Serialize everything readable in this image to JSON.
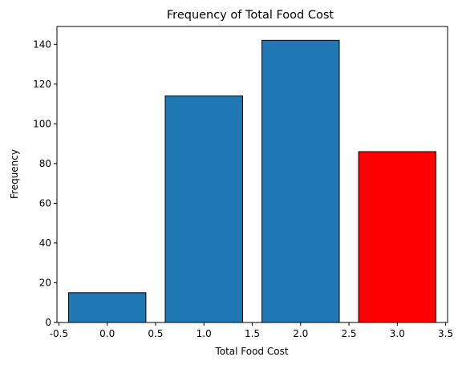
{
  "chart_data": {
    "type": "bar",
    "title": "Frequency of Total Food Cost",
    "xlabel": "Total Food Cost",
    "ylabel": "Frequency",
    "x": [
      0,
      1,
      2,
      3
    ],
    "values": [
      15,
      114,
      142,
      86
    ],
    "bar_colors": [
      "#1f77b4",
      "#1f77b4",
      "#1f77b4",
      "#ff0000"
    ],
    "edge_color": "#000000",
    "bar_width": 0.8,
    "xlim": [
      -0.52,
      3.52
    ],
    "ylim": [
      0,
      149
    ],
    "xticks": [
      "-0.5",
      "0.0",
      "0.5",
      "1.0",
      "1.5",
      "2.0",
      "2.5",
      "3.0",
      "3.5"
    ],
    "xtick_values": [
      -0.5,
      0.0,
      0.5,
      1.0,
      1.5,
      2.0,
      2.5,
      3.0,
      3.5
    ],
    "yticks": [
      "0",
      "20",
      "40",
      "60",
      "80",
      "100",
      "120",
      "140"
    ],
    "ytick_values": [
      0,
      20,
      40,
      60,
      80,
      100,
      120,
      140
    ],
    "grid": false,
    "legend": "none"
  }
}
